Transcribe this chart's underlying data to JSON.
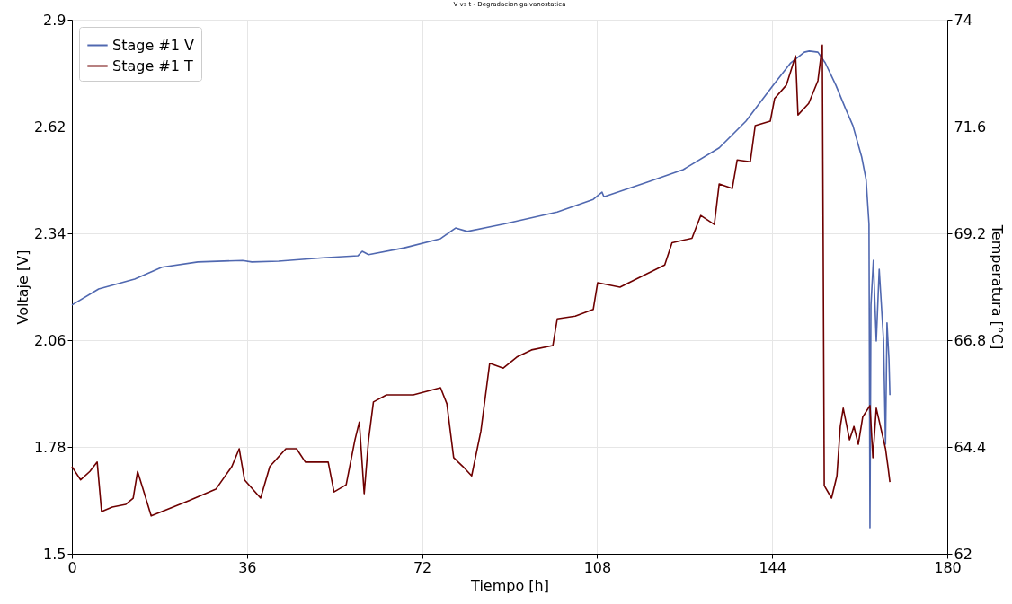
{
  "chart_data": {
    "type": "line",
    "title": "V vs t - Degradacion galvanostatica",
    "xlabel": "Tiempo [h]",
    "ylabel": "Voltaje [V]",
    "y2label": "Temperatura [°C]",
    "xlim": [
      0,
      180
    ],
    "xticks": [
      0,
      36,
      72,
      108,
      144,
      180
    ],
    "ylim": [
      1.5,
      2.9
    ],
    "yticks": [
      1.5,
      1.78,
      2.06,
      2.34,
      2.62,
      2.9
    ],
    "y2lim": [
      62,
      74
    ],
    "y2ticks": [
      62,
      64.4,
      66.8,
      69.2,
      71.6,
      74
    ],
    "grid": true,
    "legend": "top left",
    "line_style": "solid",
    "marker": "none",
    "series": [
      {
        "name": "Stage #1 V",
        "color": "#5068b0",
        "x": [
          0,
          5.5,
          12.9,
          18.5,
          25.9,
          35.1,
          37,
          42.5,
          51.7,
          58.8,
          59.7,
          61,
          68.4,
          75.8,
          78.9,
          81.3,
          88.7,
          99.8,
          107.2,
          109,
          109.4,
          118.3,
          125.7,
          133.1,
          138.6,
          144.2,
          147.8,
          150.6,
          151.6,
          153.4,
          154.9,
          157.1,
          159,
          160.6,
          162.4,
          163.3,
          163.9,
          164.1,
          164.3,
          164.8,
          165.4,
          166,
          166.9,
          167.3,
          167.6,
          168,
          168.2
        ],
        "values": [
          2.152,
          2.194,
          2.22,
          2.251,
          2.265,
          2.269,
          2.265,
          2.267,
          2.276,
          2.281,
          2.293,
          2.284,
          2.302,
          2.326,
          2.354,
          2.345,
          2.364,
          2.396,
          2.429,
          2.448,
          2.436,
          2.474,
          2.507,
          2.564,
          2.634,
          2.728,
          2.787,
          2.815,
          2.818,
          2.815,
          2.787,
          2.728,
          2.669,
          2.622,
          2.54,
          2.481,
          2.364,
          1.568,
          2.152,
          2.269,
          2.058,
          2.246,
          2.058,
          1.787,
          2.105,
          2.011,
          1.916
        ]
      },
      {
        "name": "Stage #1 T",
        "color": "#6e0000",
        "axis": "y2",
        "x": [
          0,
          1.8,
          3.7,
          5.2,
          6.1,
          8.3,
          11.1,
          12.6,
          13.5,
          14.8,
          16.3,
          18.5,
          24,
          29.6,
          32.9,
          34.4,
          35.5,
          38.8,
          40.7,
          44,
          46.2,
          48,
          52.7,
          53.9,
          56.4,
          58.2,
          59.1,
          60.1,
          61,
          62,
          64.7,
          70.2,
          75.8,
          77.1,
          78.5,
          80.4,
          82.2,
          84.1,
          85.9,
          88.7,
          91.5,
          94.5,
          98.9,
          99.8,
          103.5,
          107.2,
          108.1,
          112.7,
          116.4,
          121.9,
          123.4,
          127.5,
          129.3,
          132.1,
          133.1,
          135.8,
          136.8,
          139.5,
          140.5,
          143.6,
          144.5,
          146.9,
          148.8,
          149.3,
          151.5,
          153.4,
          154.3,
          154.7,
          156.2,
          157.3,
          158,
          158.6,
          159.9,
          160.8,
          161.7,
          162.6,
          164.1,
          164.7,
          165.4,
          167.3,
          167.8,
          168.2
        ],
        "values": [
          63.96,
          63.66,
          63.85,
          64.06,
          62.95,
          63.05,
          63.11,
          63.25,
          63.85,
          63.39,
          62.85,
          62.95,
          63.19,
          63.45,
          63.96,
          64.36,
          63.66,
          63.25,
          63.96,
          64.36,
          64.36,
          64.06,
          64.06,
          63.39,
          63.55,
          64.56,
          64.96,
          63.35,
          64.56,
          65.41,
          65.57,
          65.57,
          65.73,
          65.37,
          64.16,
          63.96,
          63.75,
          64.76,
          66.28,
          66.17,
          66.42,
          66.58,
          66.68,
          67.28,
          67.34,
          67.49,
          68.09,
          67.99,
          68.19,
          68.49,
          68.99,
          69.09,
          69.6,
          69.4,
          70.31,
          70.21,
          70.85,
          70.81,
          71.62,
          71.72,
          72.23,
          72.53,
          73.19,
          71.86,
          72.12,
          72.63,
          73.43,
          63.53,
          63.25,
          63.75,
          64.86,
          65.27,
          64.56,
          64.86,
          64.46,
          65.07,
          65.33,
          64.16,
          65.27,
          64.36,
          63.96,
          63.61
        ]
      }
    ]
  }
}
